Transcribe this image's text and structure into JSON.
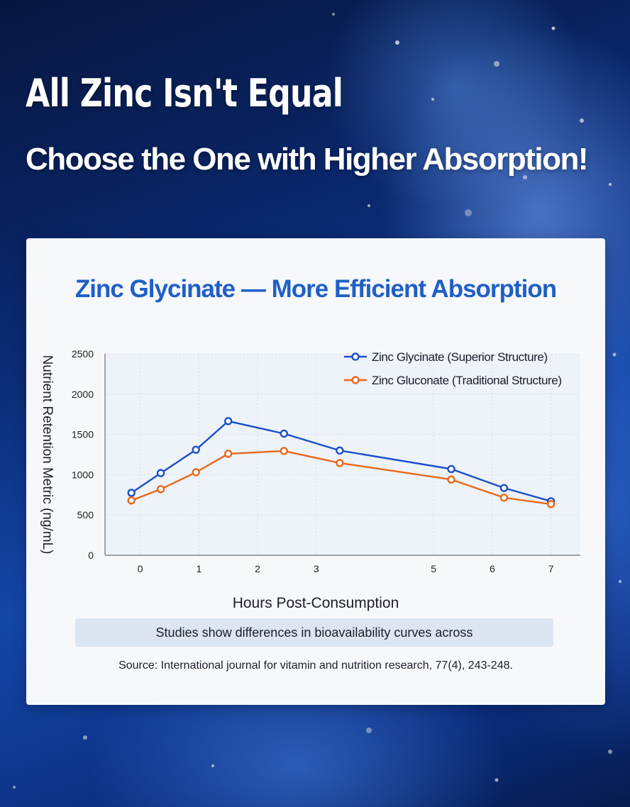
{
  "header": {
    "headline": "All Zinc Isn't Equal",
    "subheadline": "Choose the One with Higher Absorption!"
  },
  "card": {
    "note": "Studies show differences in bioavailability curves across",
    "source": "Source: International journal for vitamin and nutrition research, 77(4), 243-248."
  },
  "colors": {
    "glycinate": "#1a4fc9",
    "gluconate": "#e8681a",
    "title_blue": "#1f5fc7"
  },
  "chart_data": {
    "type": "line",
    "title": "Zinc Glycinate — More Efficient Absorption",
    "xlabel": "Hours Post-Consumption",
    "ylabel": "Nutrient Retention Metric (ng/mL)",
    "ylim": [
      0,
      2500
    ],
    "yticks": [
      0,
      500,
      1000,
      1500,
      2000,
      2500
    ],
    "xticks": [
      "0",
      "1",
      "2",
      "3",
      "5",
      "6",
      "7"
    ],
    "xlim": [
      -0.6,
      7.5
    ],
    "grid": true,
    "legend_position": "top-right",
    "series": [
      {
        "name": "Zinc Glycinate (Superior Structure)",
        "x": [
          -0.15,
          0.35,
          0.95,
          1.5,
          2.45,
          3.4,
          5.3,
          6.2,
          7.0
        ],
        "y": [
          775,
          1020,
          1310,
          1665,
          1510,
          1300,
          1070,
          835,
          670
        ]
      },
      {
        "name": "Zinc Gluconate (Traditional Structure)",
        "x": [
          -0.15,
          0.35,
          0.95,
          1.5,
          2.45,
          3.4,
          5.3,
          6.2,
          7.0
        ],
        "y": [
          680,
          820,
          1030,
          1260,
          1295,
          1145,
          940,
          715,
          635
        ]
      }
    ]
  }
}
